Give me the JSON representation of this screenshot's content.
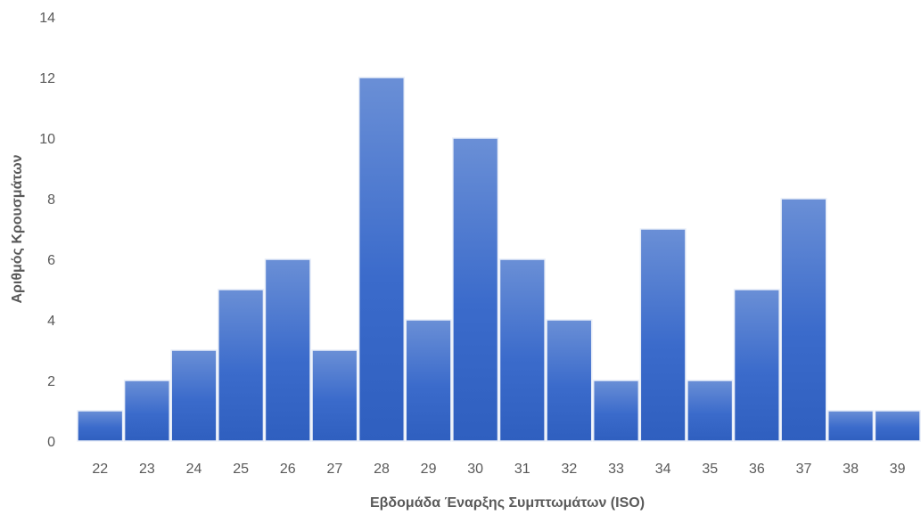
{
  "chart_data": {
    "type": "bar",
    "title": "",
    "xlabel": "Εβδομάδα Έναρξης Συμπτωμάτων (ISO)",
    "ylabel": "Αριθμός Κρουσμάτων",
    "categories": [
      "22",
      "23",
      "24",
      "25",
      "26",
      "27",
      "28",
      "29",
      "30",
      "31",
      "32",
      "33",
      "34",
      "35",
      "36",
      "37",
      "38",
      "39"
    ],
    "values": [
      1,
      2,
      3,
      5,
      6,
      3,
      12,
      4,
      10,
      6,
      4,
      2,
      7,
      2,
      5,
      8,
      1,
      1
    ],
    "ylim": [
      0,
      14
    ],
    "yticks": [
      "0",
      "2",
      "4",
      "6",
      "8",
      "10",
      "12",
      "14"
    ],
    "grid": false,
    "legend": "none",
    "colors": {
      "bar_top": "#6a8fd6",
      "bar_bottom": "#2f5fbf",
      "bar_edge": "#e8eef8",
      "text": "#595959"
    }
  }
}
